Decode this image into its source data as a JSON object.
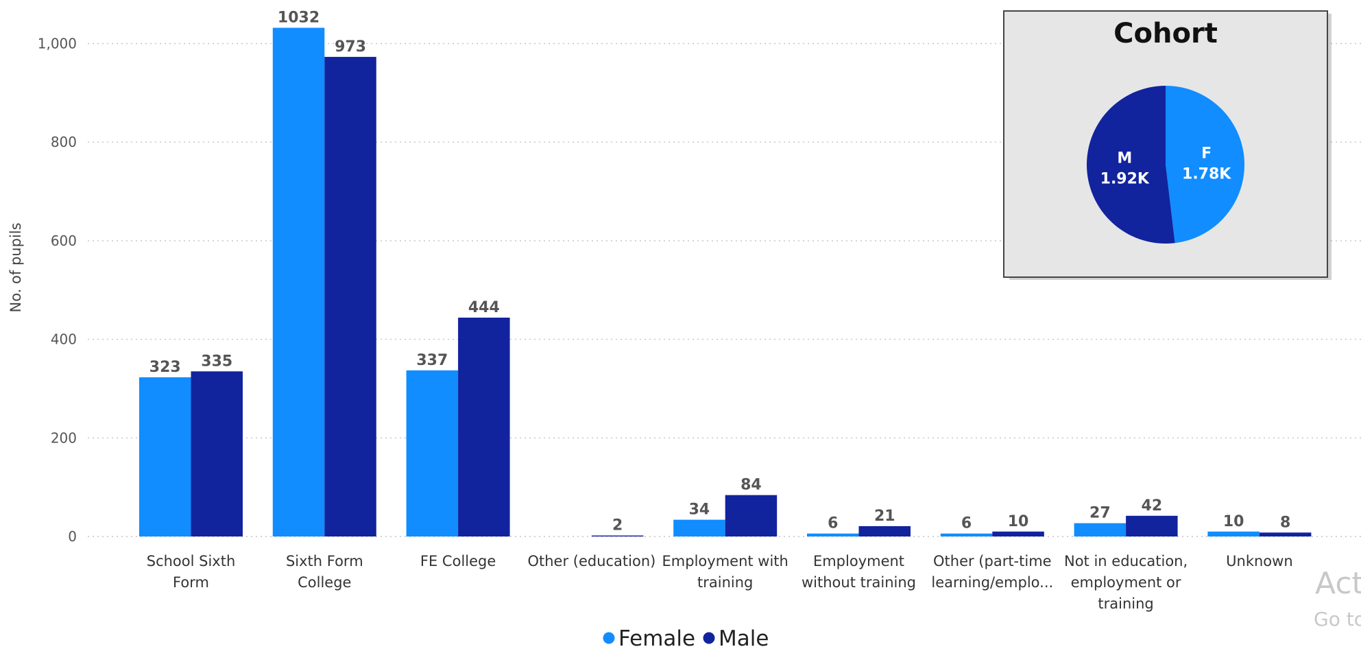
{
  "chart_data": [
    {
      "type": "bar",
      "ylabel": "No. of pupils",
      "ylim": [
        0,
        1050
      ],
      "yticks": [
        0,
        200,
        400,
        600,
        800,
        1000
      ],
      "ytick_labels": [
        "0",
        "200",
        "400",
        "600",
        "800",
        "1,000"
      ],
      "grid": "horizontal dotted",
      "legend_position": "bottom",
      "categories": [
        [
          "School Sixth",
          "Form"
        ],
        [
          "Sixth Form",
          "College"
        ],
        [
          "FE College"
        ],
        [
          "Other (education)"
        ],
        [
          "Employment with",
          "training"
        ],
        [
          "Employment",
          "without training"
        ],
        [
          "Other (part-time",
          "learning/emplo..."
        ],
        [
          "Not in education,",
          "employment or",
          "training"
        ],
        [
          "Unknown"
        ]
      ],
      "series": [
        {
          "name": "Female",
          "color": "#118dff",
          "values": [
            323,
            1032,
            337,
            null,
            34,
            6,
            6,
            27,
            10
          ],
          "labels": [
            "323",
            "1032",
            "337",
            "",
            "34",
            "6",
            "6",
            "27",
            "10"
          ]
        },
        {
          "name": "Male",
          "color": "#12239e",
          "values": [
            335,
            973,
            444,
            2,
            84,
            21,
            10,
            42,
            8
          ],
          "labels": [
            "335",
            "973",
            "444",
            "2",
            "84",
            "21",
            "10",
            "42",
            "8"
          ]
        }
      ]
    },
    {
      "type": "pie",
      "title": "Cohort",
      "slices": [
        {
          "name": "F",
          "value": 1780,
          "label": "1.78K",
          "color": "#118dff"
        },
        {
          "name": "M",
          "value": 1920,
          "label": "1.92K",
          "color": "#12239e"
        }
      ]
    }
  ],
  "watermark": {
    "line1": "Act",
    "line2": "Go to"
  }
}
